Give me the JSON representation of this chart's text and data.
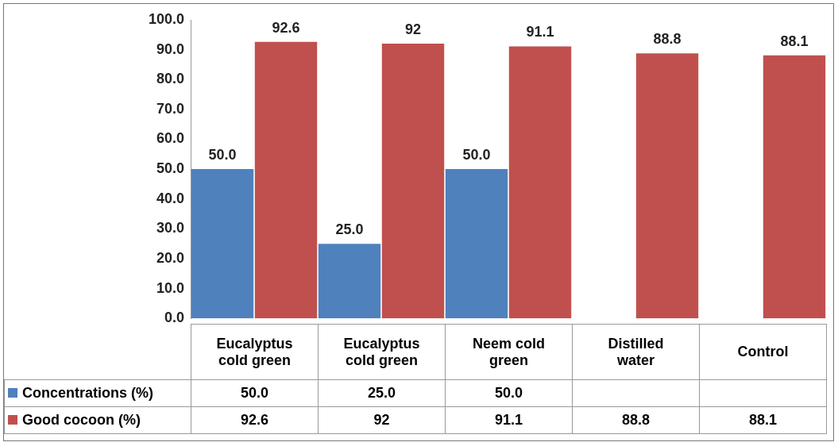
{
  "chart_data": {
    "type": "bar",
    "categories": [
      "Eucalyptus cold green",
      "Eucalyptus cold green",
      "Neem cold green",
      "Distilled water",
      "Control"
    ],
    "series": [
      {
        "name": "Concentrations (%)",
        "color": "#4f81bd",
        "values": [
          50,
          25,
          50,
          null,
          null
        ],
        "value_labels": [
          "50.0",
          "25.0",
          "50.0",
          null,
          null
        ]
      },
      {
        "name": "Good cocoon (%)",
        "color": "#c0504d",
        "values": [
          92.6,
          92,
          91.1,
          88.8,
          88.1
        ],
        "value_labels": [
          "92.6",
          "92",
          "91.1",
          "88.8",
          "88.1"
        ]
      }
    ],
    "ylim": [
      0,
      100
    ],
    "yticks": [
      {
        "value": 0,
        "label": "0.0"
      },
      {
        "value": 10,
        "label": "10.0"
      },
      {
        "value": 20,
        "label": "20.0"
      },
      {
        "value": 30,
        "label": "30.0"
      },
      {
        "value": 40,
        "label": "40.0"
      },
      {
        "value": 50,
        "label": "50.0"
      },
      {
        "value": 60,
        "label": "60.0"
      },
      {
        "value": 70,
        "label": "70.0"
      },
      {
        "value": 80,
        "label": "80.0"
      },
      {
        "value": 90,
        "label": "90.0"
      },
      {
        "value": 100,
        "label": "100.0"
      }
    ],
    "grid": false,
    "legend": "bottom left"
  }
}
